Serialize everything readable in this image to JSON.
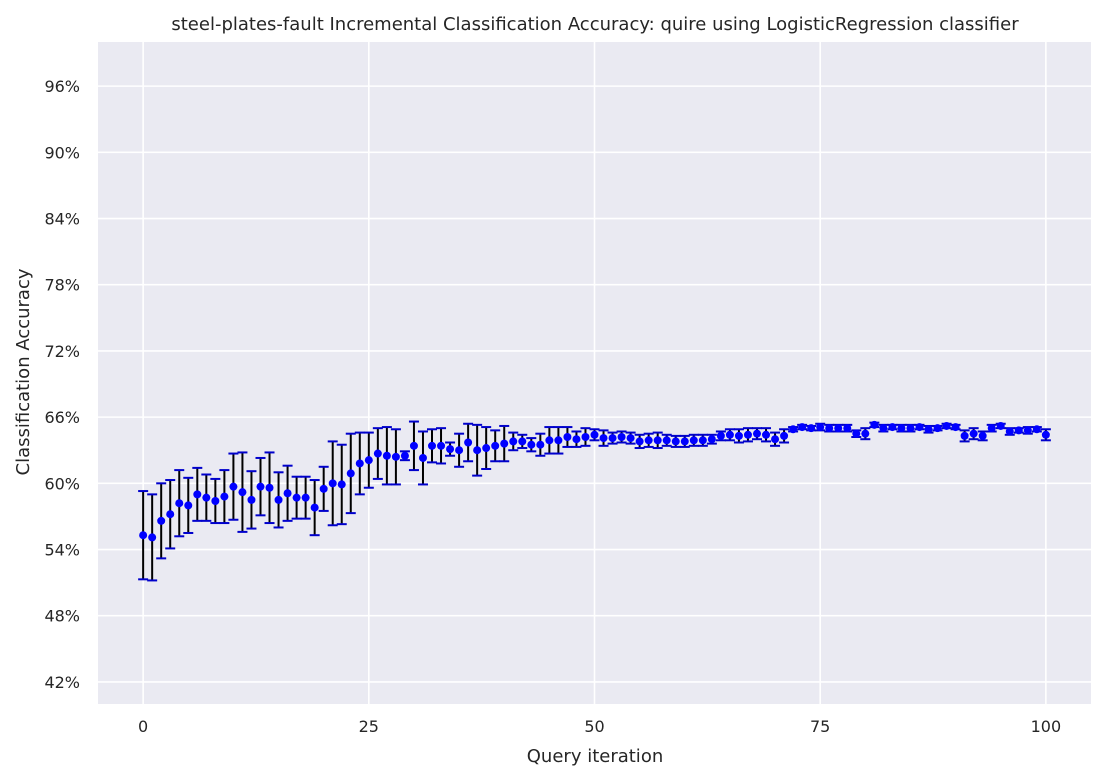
{
  "chart_data": {
    "type": "scatter",
    "title": "steel-plates-fault Incremental Classification Accuracy: quire using LogisticRegression classifier",
    "xlabel": "Query iteration",
    "ylabel": "Classification Accuracy",
    "xlim": [
      -5,
      105
    ],
    "ylim": [
      0.4,
      1.0
    ],
    "xticks": [
      0,
      25,
      50,
      75,
      100
    ],
    "xtick_labels": [
      "0",
      "25",
      "50",
      "75",
      "100"
    ],
    "yticks": [
      0.42,
      0.48,
      0.54,
      0.6,
      0.66,
      0.72,
      0.78,
      0.84,
      0.9,
      0.96
    ],
    "ytick_labels": [
      "42%",
      "48%",
      "54%",
      "60%",
      "66%",
      "72%",
      "78%",
      "84%",
      "90%",
      "96%"
    ],
    "grid": true,
    "background": "#eaeaf2",
    "point_color": "#0000ff",
    "errorbar_color": "#000000",
    "cap_color": "#0000cc",
    "x": [
      0,
      1,
      2,
      3,
      4,
      5,
      6,
      7,
      8,
      9,
      10,
      11,
      12,
      13,
      14,
      15,
      16,
      17,
      18,
      19,
      20,
      21,
      22,
      23,
      24,
      25,
      26,
      27,
      28,
      29,
      30,
      31,
      32,
      33,
      34,
      35,
      36,
      37,
      38,
      39,
      40,
      41,
      42,
      43,
      44,
      45,
      46,
      47,
      48,
      49,
      50,
      51,
      52,
      53,
      54,
      55,
      56,
      57,
      58,
      59,
      60,
      61,
      62,
      63,
      64,
      65,
      66,
      67,
      68,
      69,
      70,
      71,
      72,
      73,
      74,
      75,
      76,
      77,
      78,
      79,
      80,
      81,
      82,
      83,
      84,
      85,
      86,
      87,
      88,
      89,
      90,
      91,
      92,
      93,
      94,
      95,
      96,
      97,
      98,
      99,
      100
    ],
    "y": [
      0.553,
      0.551,
      0.566,
      0.572,
      0.582,
      0.58,
      0.59,
      0.587,
      0.584,
      0.588,
      0.597,
      0.592,
      0.585,
      0.597,
      0.596,
      0.585,
      0.591,
      0.587,
      0.587,
      0.578,
      0.595,
      0.6,
      0.599,
      0.609,
      0.618,
      0.621,
      0.627,
      0.625,
      0.624,
      0.625,
      0.634,
      0.623,
      0.634,
      0.634,
      0.631,
      0.63,
      0.637,
      0.63,
      0.632,
      0.634,
      0.636,
      0.638,
      0.638,
      0.635,
      0.635,
      0.639,
      0.639,
      0.642,
      0.64,
      0.642,
      0.644,
      0.641,
      0.641,
      0.642,
      0.641,
      0.638,
      0.639,
      0.639,
      0.639,
      0.638,
      0.638,
      0.639,
      0.639,
      0.64,
      0.643,
      0.644,
      0.643,
      0.644,
      0.645,
      0.644,
      0.64,
      0.643,
      0.649,
      0.651,
      0.65,
      0.651,
      0.65,
      0.65,
      0.65,
      0.645,
      0.645,
      0.653,
      0.65,
      0.651,
      0.65,
      0.65,
      0.651,
      0.649,
      0.65,
      0.652,
      0.651,
      0.643,
      0.645,
      0.643,
      0.65,
      0.652,
      0.647,
      0.648,
      0.648,
      0.649,
      0.644
    ],
    "err": [
      0.04,
      0.039,
      0.034,
      0.031,
      0.03,
      0.025,
      0.024,
      0.021,
      0.02,
      0.024,
      0.03,
      0.036,
      0.026,
      0.026,
      0.032,
      0.025,
      0.025,
      0.019,
      0.019,
      0.025,
      0.02,
      0.038,
      0.036,
      0.036,
      0.028,
      0.025,
      0.023,
      0.026,
      0.025,
      0.004,
      0.022,
      0.024,
      0.015,
      0.016,
      0.006,
      0.015,
      0.017,
      0.023,
      0.019,
      0.014,
      0.016,
      0.008,
      0.006,
      0.006,
      0.01,
      0.012,
      0.012,
      0.009,
      0.007,
      0.008,
      0.005,
      0.007,
      0.005,
      0.005,
      0.005,
      0.006,
      0.006,
      0.007,
      0.005,
      0.005,
      0.005,
      0.005,
      0.005,
      0.004,
      0.004,
      0.005,
      0.006,
      0.006,
      0.005,
      0.006,
      0.006,
      0.006,
      0.002,
      0.002,
      0.002,
      0.003,
      0.003,
      0.003,
      0.003,
      0.003,
      0.005,
      0.002,
      0.003,
      0.002,
      0.003,
      0.003,
      0.002,
      0.003,
      0.002,
      0.002,
      0.002,
      0.005,
      0.005,
      0.004,
      0.003,
      0.002,
      0.003,
      0.002,
      0.003,
      0.002,
      0.005
    ]
  }
}
